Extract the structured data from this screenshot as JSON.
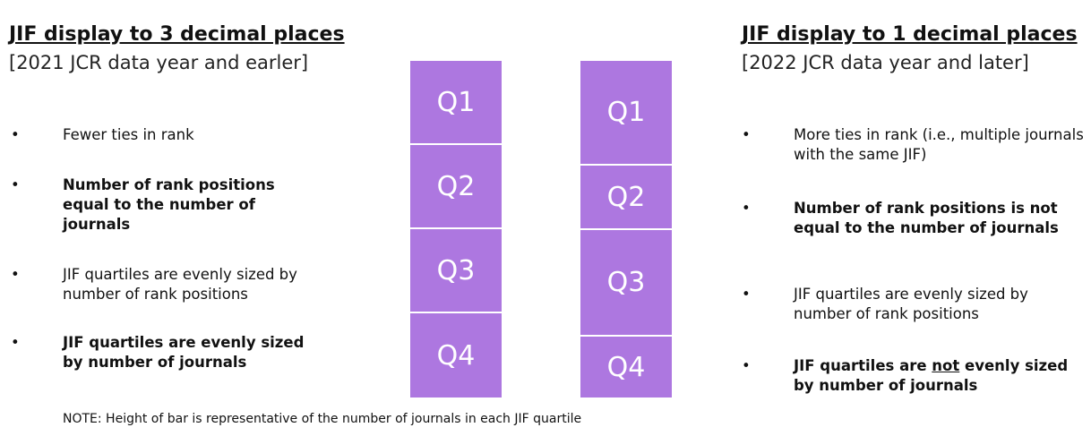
{
  "left": {
    "title": "JIF display to 3 decimal places",
    "subtitle": "[2021 JCR data year and earler]",
    "bullets": [
      "Fewer ties in rank",
      "Number of rank positions equal to the number of journals",
      "JIF quartiles are evenly sized by number of rank positions",
      "JIF quartiles are evenly sized by number of journals"
    ]
  },
  "bars": {
    "left": [
      "Q1",
      "Q2",
      "Q3",
      "Q4"
    ],
    "right": [
      "Q1",
      "Q2",
      "Q3",
      "Q4"
    ]
  },
  "right": {
    "title": "JIF display to 1 decimal places",
    "subtitle": "[2022 JCR data year and later]",
    "bullets": [
      "More ties in rank (i.e., multiple journals with the same JIF)",
      "Number of rank positions is not equal to the number of journals",
      "JIF quartiles are evenly sized by number of rank positions"
    ],
    "last_bullet": [
      "JIF quartiles are ",
      "not",
      " evenly sized by number of journals"
    ]
  },
  "note": "NOTE: Height of bar is representative of the number of journals in each JIF quartile"
}
